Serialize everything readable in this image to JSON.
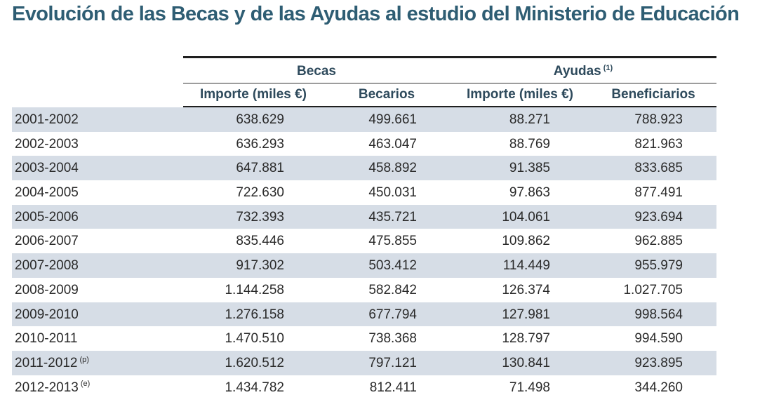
{
  "title": "Evolución de las Becas y de las Ayudas al estudio del Ministerio de Educación",
  "groups": {
    "becas": "Becas",
    "ayudas": "Ayudas",
    "ayudas_note": "(1)"
  },
  "headers": {
    "becas_importe": "Importe (miles €)",
    "becas_becarios": "Becarios",
    "ayudas_importe": "Importe (miles €)",
    "ayudas_beneficiarios": "Beneficiarios"
  },
  "rows": [
    {
      "year": "2001-2002",
      "note": "",
      "becas_importe": "638.629",
      "becarios": "499.661",
      "ayudas_importe": "88.271",
      "beneficiarios": "788.923"
    },
    {
      "year": "2002-2003",
      "note": "",
      "becas_importe": "636.293",
      "becarios": "463.047",
      "ayudas_importe": "88.769",
      "beneficiarios": "821.963"
    },
    {
      "year": "2003-2004",
      "note": "",
      "becas_importe": "647.881",
      "becarios": "458.892",
      "ayudas_importe": "91.385",
      "beneficiarios": "833.685"
    },
    {
      "year": "2004-2005",
      "note": "",
      "becas_importe": "722.630",
      "becarios": "450.031",
      "ayudas_importe": "97.863",
      "beneficiarios": "877.491"
    },
    {
      "year": "2005-2006",
      "note": "",
      "becas_importe": "732.393",
      "becarios": "435.721",
      "ayudas_importe": "104.061",
      "beneficiarios": "923.694"
    },
    {
      "year": "2006-2007",
      "note": "",
      "becas_importe": "835.446",
      "becarios": "475.855",
      "ayudas_importe": "109.862",
      "beneficiarios": "962.885"
    },
    {
      "year": "2007-2008",
      "note": "",
      "becas_importe": "917.302",
      "becarios": "503.412",
      "ayudas_importe": "114.449",
      "beneficiarios": "955.979"
    },
    {
      "year": "2008-2009",
      "note": "",
      "becas_importe": "1.144.258",
      "becarios": "582.842",
      "ayudas_importe": "126.374",
      "beneficiarios": "1.027.705"
    },
    {
      "year": "2009-2010",
      "note": "",
      "becas_importe": "1.276.158",
      "becarios": "677.794",
      "ayudas_importe": "127.981",
      "beneficiarios": "998.564"
    },
    {
      "year": "2010-2011",
      "note": "",
      "becas_importe": "1.470.510",
      "becarios": "738.368",
      "ayudas_importe": "128.797",
      "beneficiarios": "994.590"
    },
    {
      "year": "2011-2012",
      "note": "(p)",
      "becas_importe": "1.620.512",
      "becarios": "797.121",
      "ayudas_importe": "130.841",
      "beneficiarios": "923.895"
    },
    {
      "year": "2012-2013",
      "note": "(e)",
      "becas_importe": "1.434.782",
      "becarios": "812.411",
      "ayudas_importe": "71.498",
      "beneficiarios": "344.260"
    }
  ]
}
